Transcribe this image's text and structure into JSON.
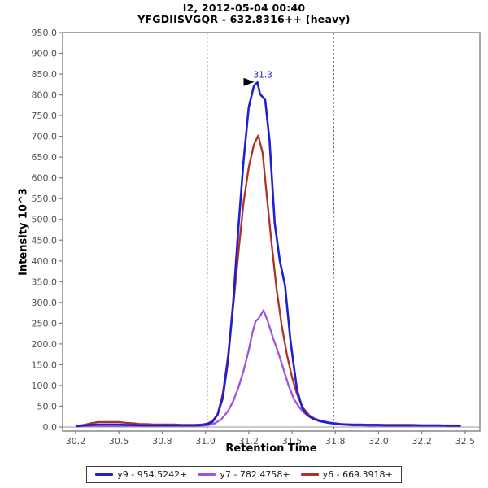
{
  "chart_data": {
    "type": "line",
    "title": "I2, 2012-05-04 00:40",
    "subtitle": "YFGDIISVGQR - 632.8316++ (heavy)",
    "xlabel": "Retention Time",
    "ylabel": "Intensity 10^3",
    "xlim": [
      30.175,
      32.585
    ],
    "ylim": [
      -9.8,
      950
    ],
    "grid": false,
    "legend_position": "bottom",
    "x_ticks": [
      {
        "t": 30.25,
        "label": "30.2"
      },
      {
        "t": 30.5,
        "label": "30.5"
      },
      {
        "t": 30.75,
        "label": "30.8"
      },
      {
        "t": 31.0,
        "label": "31.0"
      },
      {
        "t": 31.25,
        "label": "31.2"
      },
      {
        "t": 31.5,
        "label": "31.5"
      },
      {
        "t": 31.75,
        "label": "31.8"
      },
      {
        "t": 32.0,
        "label": "32.0"
      },
      {
        "t": 32.25,
        "label": "32.2"
      },
      {
        "t": 32.5,
        "label": "32.5"
      }
    ],
    "y_ticks": [
      {
        "v": 0,
        "label": "0.0"
      },
      {
        "v": 50,
        "label": "50.0"
      },
      {
        "v": 100,
        "label": "100.0"
      },
      {
        "v": 150,
        "label": "150.0"
      },
      {
        "v": 200,
        "label": "200.0"
      },
      {
        "v": 250,
        "label": "250.0"
      },
      {
        "v": 300,
        "label": "300.0"
      },
      {
        "v": 350,
        "label": "350.0"
      },
      {
        "v": 400,
        "label": "400.0"
      },
      {
        "v": 450,
        "label": "450.0"
      },
      {
        "v": 500,
        "label": "500.0"
      },
      {
        "v": 550,
        "label": "550.0"
      },
      {
        "v": 600,
        "label": "600.0"
      },
      {
        "v": 650,
        "label": "650.0"
      },
      {
        "v": 700,
        "label": "700.0"
      },
      {
        "v": 750,
        "label": "750.0"
      },
      {
        "v": 800,
        "label": "800.0"
      },
      {
        "v": 850,
        "label": "850.0"
      },
      {
        "v": 900,
        "label": "900.0"
      },
      {
        "v": 950,
        "label": "950.0"
      }
    ],
    "peak_boundaries": [
      31.01,
      31.74
    ],
    "peak_annotation": {
      "text": "31.3",
      "time": 31.3,
      "intensity_10e3": 830
    },
    "colors": {
      "axis": "#808080",
      "tick_text": "#4d4d4d",
      "boundary_line": "#2b2b2b",
      "zero_line": "#9a9a9a",
      "annotation_arrow": "#000000"
    },
    "series": [
      {
        "name": "y9 - 954.5242+",
        "id": "y9",
        "color": "#2020d0",
        "points": [
          [
            30.26,
            2
          ],
          [
            30.3,
            4
          ],
          [
            30.34,
            5
          ],
          [
            30.38,
            6
          ],
          [
            30.42,
            6
          ],
          [
            30.46,
            6
          ],
          [
            30.5,
            6
          ],
          [
            30.54,
            5
          ],
          [
            30.58,
            5
          ],
          [
            30.62,
            4
          ],
          [
            30.66,
            4
          ],
          [
            30.7,
            4
          ],
          [
            30.74,
            4
          ],
          [
            30.78,
            4
          ],
          [
            30.82,
            4
          ],
          [
            30.86,
            4
          ],
          [
            30.9,
            4
          ],
          [
            30.94,
            4
          ],
          [
            30.98,
            5
          ],
          [
            31.01,
            7
          ],
          [
            31.04,
            12
          ],
          [
            31.07,
            30
          ],
          [
            31.1,
            70
          ],
          [
            31.13,
            160
          ],
          [
            31.16,
            300
          ],
          [
            31.19,
            480
          ],
          [
            31.22,
            640
          ],
          [
            31.25,
            770
          ],
          [
            31.28,
            822
          ],
          [
            31.3,
            830
          ],
          [
            31.315,
            802
          ],
          [
            31.345,
            788
          ],
          [
            31.37,
            690
          ],
          [
            31.4,
            490
          ],
          [
            31.43,
            400
          ],
          [
            31.46,
            340
          ],
          [
            31.49,
            212
          ],
          [
            31.51,
            147
          ],
          [
            31.53,
            88
          ],
          [
            31.56,
            45
          ],
          [
            31.59,
            28
          ],
          [
            31.62,
            20
          ],
          [
            31.66,
            14
          ],
          [
            31.7,
            11
          ],
          [
            31.74,
            9
          ],
          [
            31.78,
            7
          ],
          [
            31.82,
            6
          ],
          [
            31.86,
            5
          ],
          [
            31.9,
            5
          ],
          [
            31.95,
            5
          ],
          [
            32.0,
            5
          ],
          [
            32.05,
            4
          ],
          [
            32.1,
            4
          ],
          [
            32.15,
            4
          ],
          [
            32.2,
            4
          ],
          [
            32.25,
            4
          ],
          [
            32.3,
            4
          ],
          [
            32.35,
            4
          ],
          [
            32.4,
            3
          ],
          [
            32.47,
            3
          ]
        ]
      },
      {
        "name": "y7 - 782.4758+",
        "id": "y7",
        "color": "#9f54dc",
        "points": [
          [
            30.26,
            2
          ],
          [
            30.35,
            3
          ],
          [
            30.45,
            3
          ],
          [
            30.55,
            3
          ],
          [
            30.65,
            3
          ],
          [
            30.75,
            3
          ],
          [
            30.85,
            3
          ],
          [
            30.95,
            3
          ],
          [
            31.01,
            4
          ],
          [
            31.05,
            8
          ],
          [
            31.09,
            18
          ],
          [
            31.13,
            38
          ],
          [
            31.16,
            62
          ],
          [
            31.19,
            95
          ],
          [
            31.22,
            135
          ],
          [
            31.25,
            185
          ],
          [
            31.27,
            225
          ],
          [
            31.29,
            255
          ],
          [
            31.305,
            260
          ],
          [
            31.32,
            270
          ],
          [
            31.335,
            281
          ],
          [
            31.36,
            255
          ],
          [
            31.39,
            215
          ],
          [
            31.42,
            180
          ],
          [
            31.45,
            140
          ],
          [
            31.48,
            100
          ],
          [
            31.51,
            68
          ],
          [
            31.54,
            48
          ],
          [
            31.57,
            34
          ],
          [
            31.6,
            26
          ],
          [
            31.64,
            19
          ],
          [
            31.68,
            14
          ],
          [
            31.72,
            10
          ],
          [
            31.76,
            7
          ],
          [
            31.8,
            5
          ],
          [
            31.85,
            4
          ],
          [
            31.9,
            4
          ],
          [
            31.95,
            3
          ],
          [
            32.0,
            3
          ],
          [
            32.1,
            3
          ],
          [
            32.2,
            3
          ],
          [
            32.3,
            3
          ],
          [
            32.4,
            3
          ],
          [
            32.47,
            3
          ]
        ]
      },
      {
        "name": "y6 - 669.3918+",
        "id": "y6",
        "color": "#b03028",
        "points": [
          [
            30.26,
            3
          ],
          [
            30.3,
            5
          ],
          [
            30.34,
            9
          ],
          [
            30.38,
            12
          ],
          [
            30.42,
            12
          ],
          [
            30.46,
            12
          ],
          [
            30.5,
            12
          ],
          [
            30.54,
            10
          ],
          [
            30.58,
            9
          ],
          [
            30.62,
            7
          ],
          [
            30.66,
            7
          ],
          [
            30.7,
            6
          ],
          [
            30.74,
            6
          ],
          [
            30.78,
            6
          ],
          [
            30.82,
            6
          ],
          [
            30.86,
            5
          ],
          [
            30.9,
            5
          ],
          [
            30.94,
            5
          ],
          [
            30.98,
            6
          ],
          [
            31.01,
            8
          ],
          [
            31.04,
            14
          ],
          [
            31.07,
            30
          ],
          [
            31.1,
            80
          ],
          [
            31.13,
            170
          ],
          [
            31.16,
            290
          ],
          [
            31.19,
            420
          ],
          [
            31.22,
            540
          ],
          [
            31.25,
            625
          ],
          [
            31.28,
            680
          ],
          [
            31.305,
            702
          ],
          [
            31.33,
            660
          ],
          [
            31.35,
            575
          ],
          [
            31.38,
            450
          ],
          [
            31.41,
            335
          ],
          [
            31.44,
            245
          ],
          [
            31.47,
            175
          ],
          [
            31.5,
            120
          ],
          [
            31.53,
            78
          ],
          [
            31.56,
            48
          ],
          [
            31.6,
            28
          ],
          [
            31.64,
            17
          ],
          [
            31.68,
            12
          ],
          [
            31.72,
            9
          ],
          [
            31.76,
            7
          ],
          [
            31.8,
            6
          ],
          [
            31.85,
            6
          ],
          [
            31.9,
            6
          ],
          [
            31.95,
            5
          ],
          [
            32.0,
            5
          ],
          [
            32.05,
            5
          ],
          [
            32.1,
            5
          ],
          [
            32.15,
            5
          ],
          [
            32.2,
            5
          ],
          [
            32.25,
            4
          ],
          [
            32.3,
            4
          ],
          [
            32.35,
            4
          ],
          [
            32.4,
            4
          ],
          [
            32.47,
            4
          ]
        ]
      }
    ],
    "draw_order": [
      1,
      2,
      0
    ]
  }
}
